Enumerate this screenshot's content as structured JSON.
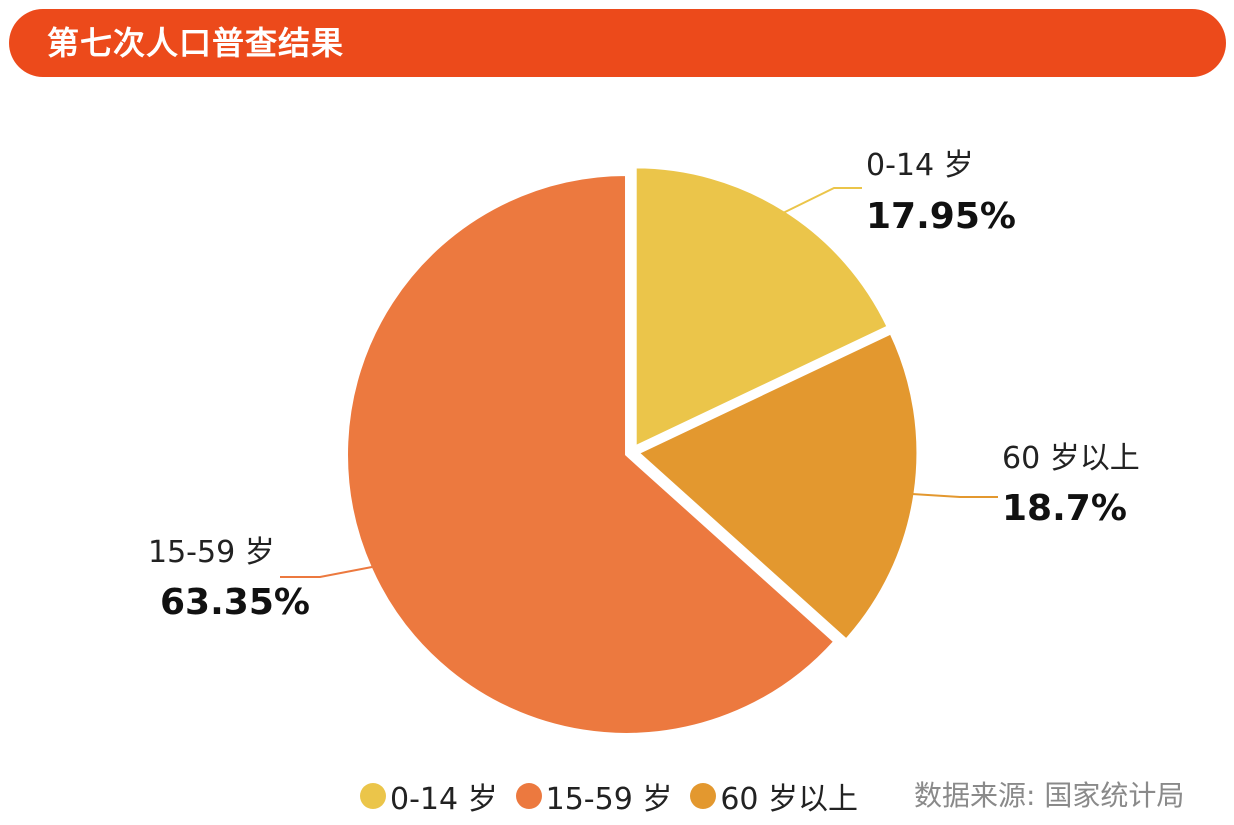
{
  "header": {
    "title": "第七次人口普查结果"
  },
  "chart_data": {
    "type": "pie",
    "title": "第七次人口普查结果",
    "unit": "%",
    "slices": [
      {
        "label": "0-14 岁",
        "value": 17.95,
        "value_text": "17.95%",
        "color": "#ebc54a"
      },
      {
        "label": "60 岁以上",
        "value": 18.7,
        "value_text": "18.7%",
        "color": "#e3982f"
      },
      {
        "label": "15-59 岁",
        "value": 63.35,
        "value_text": "63.35%",
        "color": "#ec793f"
      }
    ],
    "legend": {
      "placement": "bottom",
      "items": [
        "0-14 岁",
        "15-59 岁",
        "60 岁以上"
      ]
    }
  },
  "footer": {
    "source": "数据来源: 国家统计局"
  }
}
